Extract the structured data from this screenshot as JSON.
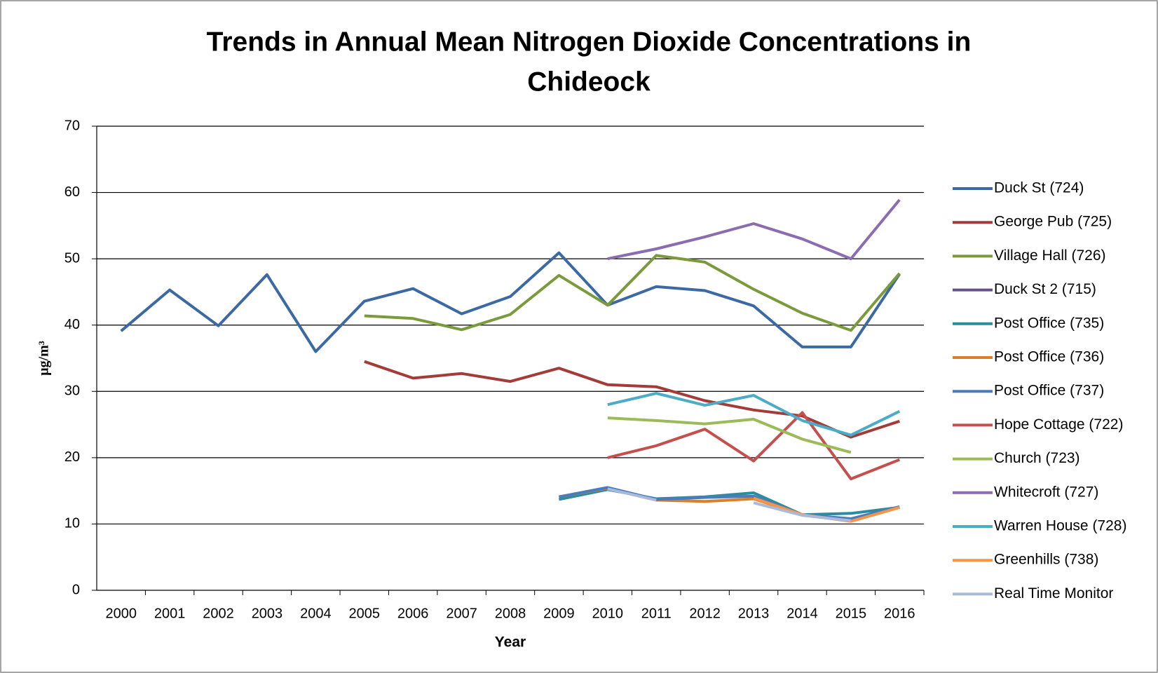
{
  "chart_data": {
    "type": "line",
    "title": "Trends in Annual Mean Nitrogen Dioxide Concentrations in Chideock",
    "x_label": "Year",
    "y_label": "μg/m³",
    "categories": [
      "2000",
      "2001",
      "2002",
      "2003",
      "2004",
      "2005",
      "2006",
      "2007",
      "2008",
      "2009",
      "2010",
      "2011",
      "2012",
      "2013",
      "2014",
      "2015",
      "2016"
    ],
    "ylim": [
      0,
      70
    ],
    "yticks": [
      0,
      10,
      20,
      30,
      40,
      50,
      60,
      70
    ],
    "grid": true,
    "legend": "right",
    "series": [
      {
        "name": "Duck St (724)",
        "color": "#3c69a4",
        "values": [
          39.1,
          45.3,
          39.9,
          47.6,
          36.0,
          43.6,
          45.5,
          41.7,
          44.3,
          50.9,
          43.0,
          45.8,
          45.2,
          42.9,
          36.7,
          36.7,
          47.7
        ]
      },
      {
        "name": "George Pub (725)",
        "color": "#a33b38",
        "values": [
          null,
          null,
          null,
          null,
          null,
          34.5,
          32.0,
          32.7,
          31.5,
          33.5,
          31.0,
          30.7,
          28.6,
          27.2,
          26.3,
          23.1,
          25.5
        ]
      },
      {
        "name": "Village Hall (726)",
        "color": "#7a9a3c",
        "values": [
          null,
          null,
          null,
          null,
          null,
          41.4,
          41.0,
          39.3,
          41.6,
          47.5,
          43.0,
          50.5,
          49.5,
          45.4,
          41.8,
          39.2,
          47.8
        ]
      },
      {
        "name": "Duck St 2 (715)",
        "color": "#64508a",
        "values": [
          null,
          null,
          null,
          null,
          null,
          null,
          null,
          null,
          null,
          null,
          null,
          null,
          null,
          null,
          null,
          null,
          null
        ]
      },
      {
        "name": "Post Office (735)",
        "color": "#2b8ca0",
        "values": [
          null,
          null,
          null,
          null,
          null,
          null,
          null,
          null,
          null,
          13.7,
          15.2,
          13.8,
          14.1,
          14.7,
          11.4,
          11.6,
          12.5
        ]
      },
      {
        "name": "Post Office (736)",
        "color": "#db7f2e",
        "values": [
          null,
          null,
          null,
          null,
          null,
          null,
          null,
          null,
          null,
          14.1,
          15.4,
          13.6,
          13.4,
          13.8,
          11.4,
          10.4,
          12.5
        ]
      },
      {
        "name": "Post Office (737)",
        "color": "#4a7cbc",
        "values": [
          null,
          null,
          null,
          null,
          null,
          null,
          null,
          null,
          null,
          14.1,
          15.5,
          13.7,
          14.0,
          14.2,
          11.4,
          10.8,
          12.6
        ]
      },
      {
        "name": "Hope Cottage (722)",
        "color": "#c4504d",
        "values": [
          null,
          null,
          null,
          null,
          null,
          null,
          null,
          null,
          null,
          null,
          20.0,
          21.8,
          24.3,
          19.5,
          26.8,
          16.8,
          19.7
        ]
      },
      {
        "name": "Church (723)",
        "color": "#9bbb59",
        "values": [
          null,
          null,
          null,
          null,
          null,
          null,
          null,
          null,
          null,
          null,
          26.0,
          25.6,
          25.1,
          25.8,
          22.8,
          20.8,
          null
        ]
      },
      {
        "name": "Whitecroft (727)",
        "color": "#8a6cb0",
        "values": [
          null,
          null,
          null,
          null,
          null,
          null,
          null,
          null,
          null,
          null,
          50.0,
          51.5,
          53.3,
          55.3,
          53.0,
          50.0,
          58.9
        ]
      },
      {
        "name": "Warren House (728)",
        "color": "#4bacc6",
        "values": [
          null,
          null,
          null,
          null,
          null,
          null,
          null,
          null,
          null,
          null,
          28.0,
          29.7,
          27.9,
          29.4,
          25.6,
          23.4,
          27.0
        ]
      },
      {
        "name": "Greenhills (738)",
        "color": "#f59646",
        "values": [
          null,
          null,
          null,
          null,
          null,
          null,
          null,
          null,
          null,
          null,
          null,
          null,
          null,
          13.9,
          11.4,
          10.4,
          12.5
        ]
      },
      {
        "name": "Real Time Monitor",
        "color": "#aab9d9",
        "values": [
          null,
          null,
          null,
          null,
          null,
          null,
          null,
          null,
          null,
          null,
          15.3,
          13.6,
          null,
          13.2,
          11.3,
          10.5,
          null
        ]
      }
    ]
  }
}
